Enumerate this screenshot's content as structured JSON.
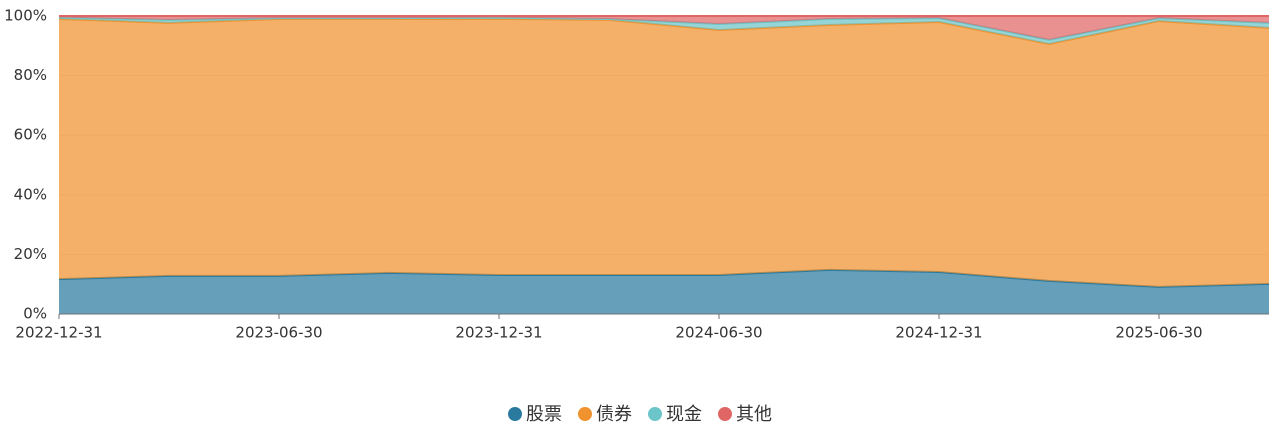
{
  "chart_data": {
    "type": "stacked_area",
    "categories": [
      "2022-12-31",
      null,
      "2023-06-30",
      null,
      "2023-12-31",
      null,
      "2024-06-30",
      null,
      "2024-12-31",
      null,
      "2025-06-30",
      null
    ],
    "series": [
      {
        "name": "股票",
        "color": "#2a7aa0",
        "values": [
          11.7,
          12.8,
          12.8,
          13.8,
          13.1,
          13.1,
          13.1,
          14.8,
          14.1,
          11.1,
          9.1,
          10.1
        ]
      },
      {
        "name": "债券",
        "color": "#f0922e",
        "values": [
          87.3,
          84.9,
          86.2,
          85.2,
          85.9,
          85.6,
          82.2,
          82.2,
          83.9,
          79.5,
          89.2,
          85.9
        ]
      },
      {
        "name": "现金",
        "color": "#6cc5c8",
        "values": [
          0.5,
          1.0,
          0.3,
          0.3,
          0.5,
          0.3,
          2.0,
          2.0,
          1.3,
          1.4,
          1.0,
          1.7
        ]
      },
      {
        "name": "其他",
        "color": "#e06666",
        "values": [
          0.5,
          1.3,
          0.7,
          0.7,
          0.5,
          1.0,
          2.7,
          1.0,
          0.7,
          8.0,
          0.7,
          2.3
        ]
      }
    ],
    "ylim": [
      0,
      100
    ],
    "yticks": [
      {
        "value": 0,
        "label": "0%"
      },
      {
        "value": 20,
        "label": "20%"
      },
      {
        "value": 40,
        "label": "40%"
      },
      {
        "value": 60,
        "label": "60%"
      },
      {
        "value": 80,
        "label": "80%"
      },
      {
        "value": 100,
        "label": "100%"
      }
    ],
    "legend": "bottom"
  }
}
